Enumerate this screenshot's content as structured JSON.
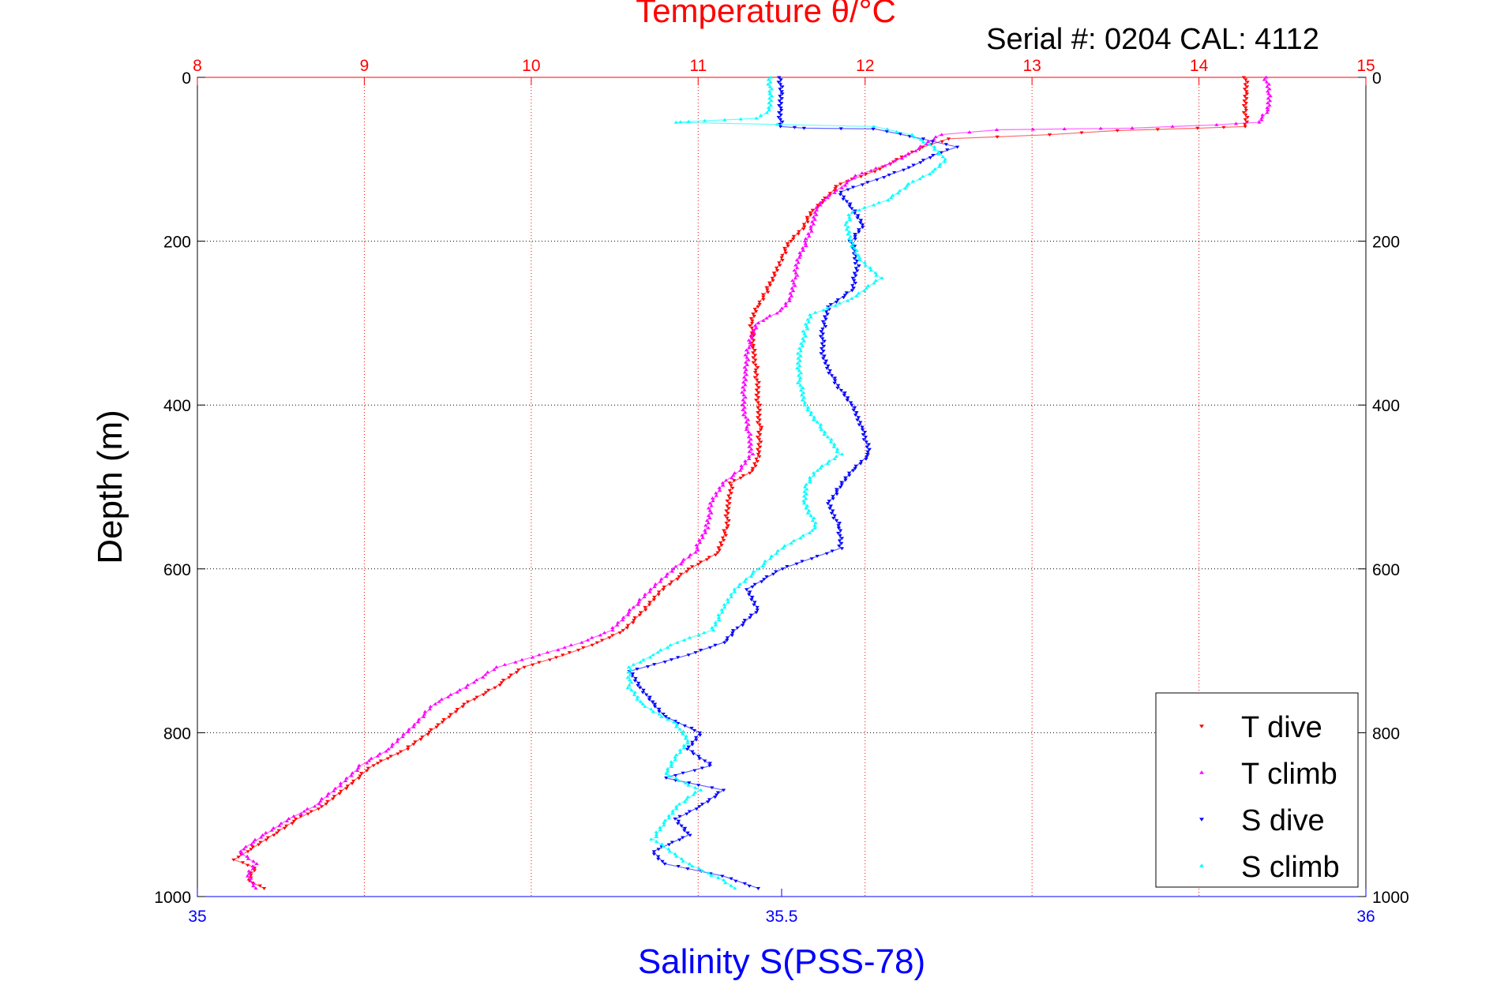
{
  "header": {
    "top_axis_title": "Temperature θ/°C",
    "serial_label": "Serial #: 0204  CAL: 4112"
  },
  "chart_data": {
    "type": "scatter",
    "y_axis": {
      "label": "Depth (m)",
      "lim": [
        0,
        1000
      ],
      "reversed": true,
      "ticks": [
        0,
        200,
        400,
        600,
        800,
        1000
      ],
      "tick_labels": [
        "0",
        "200",
        "400",
        "600",
        "800",
        "1000"
      ]
    },
    "top_x_axis": {
      "label": "Temperature θ/°C",
      "lim": [
        8,
        15
      ],
      "ticks": [
        8,
        9,
        10,
        11,
        12,
        13,
        14,
        15
      ],
      "tick_labels": [
        "8",
        "9",
        "10",
        "11",
        "12",
        "13",
        "14",
        "15"
      ],
      "color": "#ff0000"
    },
    "bottom_x_axis": {
      "label": "Salinity S(PSS-78)",
      "lim": [
        35,
        36
      ],
      "ticks": [
        35,
        35.5,
        36
      ],
      "tick_labels": [
        "35",
        "35.5",
        "36"
      ],
      "color": "#0000ff"
    },
    "grid": true,
    "legend": {
      "position": "bottom-right",
      "entries": [
        "T dive",
        "T climb",
        "S dive",
        "S climb"
      ]
    },
    "series": [
      {
        "name": "T dive",
        "axis": "temperature",
        "color": "#ff0000",
        "marker": "triangle-down",
        "points": [
          [
            14.28,
            0
          ],
          [
            14.28,
            20
          ],
          [
            14.28,
            40
          ],
          [
            14.28,
            60
          ],
          [
            14.0,
            62
          ],
          [
            13.5,
            65
          ],
          [
            13.1,
            70
          ],
          [
            12.5,
            75
          ],
          [
            12.35,
            85
          ],
          [
            12.2,
            100
          ],
          [
            12.05,
            115
          ],
          [
            11.85,
            130
          ],
          [
            11.75,
            150
          ],
          [
            11.68,
            165
          ],
          [
            11.62,
            185
          ],
          [
            11.55,
            200
          ],
          [
            11.5,
            220
          ],
          [
            11.45,
            245
          ],
          [
            11.4,
            265
          ],
          [
            11.35,
            280
          ],
          [
            11.32,
            300
          ],
          [
            11.33,
            330
          ],
          [
            11.35,
            360
          ],
          [
            11.36,
            400
          ],
          [
            11.37,
            430
          ],
          [
            11.36,
            460
          ],
          [
            11.33,
            480
          ],
          [
            11.2,
            495
          ],
          [
            11.18,
            520
          ],
          [
            11.17,
            550
          ],
          [
            11.12,
            580
          ],
          [
            10.95,
            600
          ],
          [
            10.78,
            625
          ],
          [
            10.68,
            650
          ],
          [
            10.55,
            675
          ],
          [
            10.4,
            690
          ],
          [
            10.2,
            705
          ],
          [
            9.95,
            720
          ],
          [
            9.78,
            745
          ],
          [
            9.6,
            765
          ],
          [
            9.45,
            790
          ],
          [
            9.25,
            820
          ],
          [
            9.05,
            840
          ],
          [
            8.9,
            865
          ],
          [
            8.75,
            890
          ],
          [
            8.6,
            905
          ],
          [
            8.45,
            925
          ],
          [
            8.3,
            945
          ],
          [
            8.22,
            955
          ],
          [
            8.35,
            965
          ],
          [
            8.3,
            980
          ],
          [
            8.4,
            990
          ]
        ]
      },
      {
        "name": "T climb",
        "axis": "temperature",
        "color": "#ff00ff",
        "marker": "triangle-up",
        "points": [
          [
            14.4,
            0
          ],
          [
            14.42,
            20
          ],
          [
            14.42,
            40
          ],
          [
            14.35,
            55
          ],
          [
            14.1,
            58
          ],
          [
            13.6,
            62
          ],
          [
            13.2,
            63
          ],
          [
            12.8,
            64
          ],
          [
            12.45,
            70
          ],
          [
            12.3,
            90
          ],
          [
            12.15,
            105
          ],
          [
            11.95,
            120
          ],
          [
            11.85,
            135
          ],
          [
            11.75,
            150
          ],
          [
            11.7,
            165
          ],
          [
            11.68,
            185
          ],
          [
            11.65,
            200
          ],
          [
            11.6,
            220
          ],
          [
            11.58,
            245
          ],
          [
            11.55,
            270
          ],
          [
            11.5,
            285
          ],
          [
            11.35,
            300
          ],
          [
            11.3,
            330
          ],
          [
            11.28,
            360
          ],
          [
            11.27,
            400
          ],
          [
            11.3,
            430
          ],
          [
            11.32,
            460
          ],
          [
            11.25,
            480
          ],
          [
            11.15,
            495
          ],
          [
            11.08,
            520
          ],
          [
            11.05,
            550
          ],
          [
            10.98,
            580
          ],
          [
            10.85,
            600
          ],
          [
            10.72,
            625
          ],
          [
            10.6,
            650
          ],
          [
            10.48,
            675
          ],
          [
            10.3,
            690
          ],
          [
            10.05,
            705
          ],
          [
            9.8,
            720
          ],
          [
            9.6,
            745
          ],
          [
            9.42,
            765
          ],
          [
            9.3,
            790
          ],
          [
            9.15,
            820
          ],
          [
            8.98,
            840
          ],
          [
            8.85,
            865
          ],
          [
            8.7,
            890
          ],
          [
            8.55,
            905
          ],
          [
            8.4,
            925
          ],
          [
            8.25,
            945
          ],
          [
            8.35,
            960
          ],
          [
            8.3,
            975
          ],
          [
            8.35,
            990
          ]
        ]
      },
      {
        "name": "S dive",
        "axis": "salinity",
        "color": "#0000ff",
        "marker": "triangle-down",
        "points": [
          [
            35.499,
            0
          ],
          [
            35.499,
            20
          ],
          [
            35.499,
            40
          ],
          [
            35.499,
            60
          ],
          [
            35.52,
            62
          ],
          [
            35.58,
            63
          ],
          [
            35.62,
            75
          ],
          [
            35.65,
            85
          ],
          [
            35.63,
            95
          ],
          [
            35.61,
            110
          ],
          [
            35.58,
            125
          ],
          [
            35.55,
            140
          ],
          [
            35.56,
            160
          ],
          [
            35.57,
            180
          ],
          [
            35.56,
            200
          ],
          [
            35.565,
            230
          ],
          [
            35.56,
            260
          ],
          [
            35.54,
            280
          ],
          [
            35.535,
            310
          ],
          [
            35.535,
            340
          ],
          [
            35.545,
            370
          ],
          [
            35.56,
            400
          ],
          [
            35.57,
            430
          ],
          [
            35.575,
            460
          ],
          [
            35.56,
            480
          ],
          [
            35.55,
            500
          ],
          [
            35.54,
            520
          ],
          [
            35.55,
            550
          ],
          [
            35.55,
            575
          ],
          [
            35.5,
            600
          ],
          [
            35.47,
            625
          ],
          [
            35.48,
            650
          ],
          [
            35.46,
            675
          ],
          [
            35.45,
            690
          ],
          [
            35.42,
            705
          ],
          [
            35.37,
            725
          ],
          [
            35.38,
            745
          ],
          [
            35.39,
            765
          ],
          [
            35.4,
            780
          ],
          [
            35.43,
            800
          ],
          [
            35.42,
            820
          ],
          [
            35.44,
            840
          ],
          [
            35.4,
            855
          ],
          [
            35.45,
            870
          ],
          [
            35.43,
            890
          ],
          [
            35.41,
            905
          ],
          [
            35.42,
            925
          ],
          [
            35.39,
            945
          ],
          [
            35.4,
            960
          ],
          [
            35.45,
            975
          ],
          [
            35.48,
            990
          ]
        ]
      },
      {
        "name": "S climb",
        "axis": "salinity",
        "color": "#00ffff",
        "marker": "triangle-up",
        "points": [
          [
            35.49,
            0
          ],
          [
            35.49,
            20
          ],
          [
            35.49,
            40
          ],
          [
            35.48,
            50
          ],
          [
            35.45,
            52
          ],
          [
            35.42,
            54
          ],
          [
            35.41,
            55
          ],
          [
            35.58,
            60
          ],
          [
            35.61,
            70
          ],
          [
            35.63,
            85
          ],
          [
            35.64,
            100
          ],
          [
            35.63,
            115
          ],
          [
            35.61,
            130
          ],
          [
            35.59,
            150
          ],
          [
            35.56,
            165
          ],
          [
            35.555,
            180
          ],
          [
            35.56,
            200
          ],
          [
            35.565,
            220
          ],
          [
            35.585,
            245
          ],
          [
            35.56,
            270
          ],
          [
            35.525,
            290
          ],
          [
            35.52,
            310
          ],
          [
            35.515,
            340
          ],
          [
            35.515,
            370
          ],
          [
            35.52,
            400
          ],
          [
            35.535,
            430
          ],
          [
            35.55,
            460
          ],
          [
            35.53,
            480
          ],
          [
            35.52,
            500
          ],
          [
            35.52,
            520
          ],
          [
            35.53,
            550
          ],
          [
            35.5,
            575
          ],
          [
            35.48,
            600
          ],
          [
            35.46,
            625
          ],
          [
            35.45,
            650
          ],
          [
            35.44,
            675
          ],
          [
            35.41,
            690
          ],
          [
            35.39,
            705
          ],
          [
            35.37,
            720
          ],
          [
            35.37,
            745
          ],
          [
            35.38,
            765
          ],
          [
            35.41,
            790
          ],
          [
            35.42,
            810
          ],
          [
            35.41,
            830
          ],
          [
            35.4,
            850
          ],
          [
            35.43,
            870
          ],
          [
            35.41,
            890
          ],
          [
            35.4,
            910
          ],
          [
            35.39,
            930
          ],
          [
            35.42,
            960
          ],
          [
            35.45,
            980
          ],
          [
            35.46,
            990
          ]
        ]
      }
    ]
  }
}
